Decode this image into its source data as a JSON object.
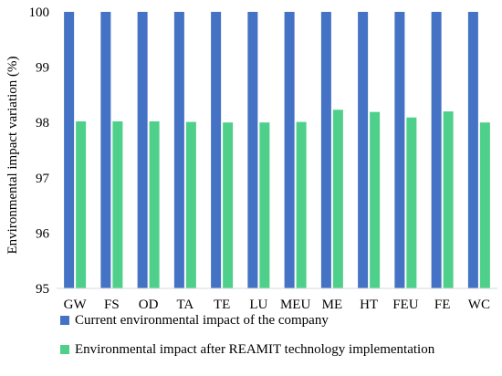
{
  "chart_data": {
    "type": "bar",
    "title": "",
    "xlabel": "",
    "ylabel": "Environmental impact variation (%)",
    "ylim": [
      95,
      100
    ],
    "yticks": [
      95,
      96,
      97,
      98,
      99,
      100
    ],
    "grid": false,
    "legend_position": "bottom",
    "categories": [
      "GW",
      "FS",
      "OD",
      "TA",
      "TE",
      "LU",
      "MEU",
      "ME",
      "HT",
      "FEU",
      "FE",
      "WC"
    ],
    "series": [
      {
        "name": "Current environmental impact of the company",
        "color": "#4472C4",
        "values": [
          100,
          100,
          100,
          100,
          100,
          100,
          100,
          100,
          100,
          100,
          100,
          100
        ]
      },
      {
        "name": "Environmental impact after REAMIT technology implementation",
        "color": "#4FD08A",
        "values": [
          98.02,
          98.02,
          98.02,
          98.01,
          98.0,
          98.0,
          98.01,
          98.23,
          98.19,
          98.09,
          98.2,
          98.0
        ]
      }
    ]
  }
}
